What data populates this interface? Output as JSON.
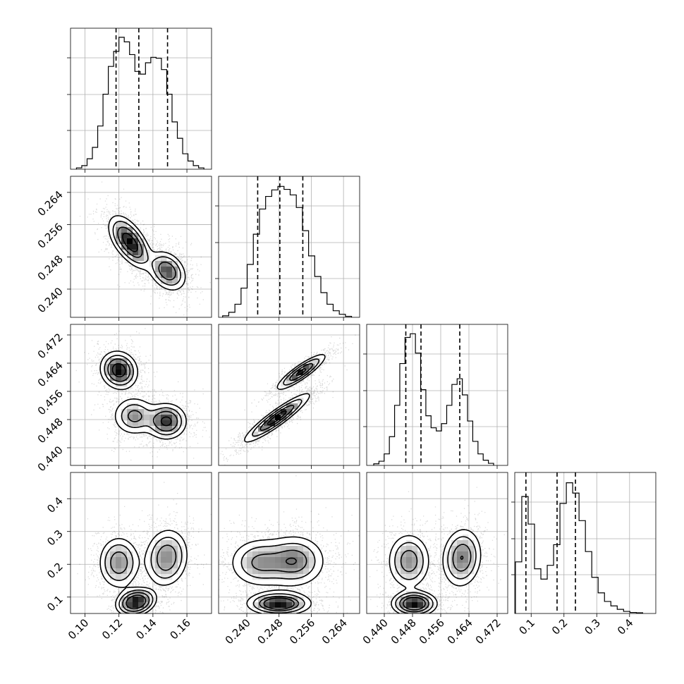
{
  "chart_data": {
    "type": "corner",
    "grid": true,
    "params": [
      {
        "lim": [
          0.0915,
          0.1745
        ],
        "ticks": [
          0.1,
          0.12,
          0.14,
          0.16
        ],
        "tick_labels": [
          "0.10",
          "0.12",
          "0.14",
          "0.16"
        ],
        "quantiles": [
          0.1183,
          0.1317,
          0.1486
        ],
        "hist": {
          "range": [
            0.095,
            0.17
          ],
          "values": [
            0.3,
            0.8,
            2.3,
            4.8,
            9.5,
            16.5,
            22.6,
            25.9,
            29.0,
            28.0,
            25.2,
            21.5,
            20.9,
            23.4,
            24.6,
            24.4,
            21.9,
            16.5,
            10.4,
            6.8,
            3.4,
            1.8,
            0.8,
            0.3
          ],
          "ymax": 31
        },
        "modes": [
          {
            "c": 0.124,
            "w": 0.55,
            "s": 0.0065
          },
          {
            "c": 0.148,
            "w": 0.45,
            "s": 0.006
          }
        ]
      },
      {
        "lim": [
          0.233,
          0.268
        ],
        "ticks": [
          0.24,
          0.248,
          0.256,
          0.264
        ],
        "tick_labels": [
          "0.240",
          "0.248",
          "0.256",
          "0.264"
        ],
        "quantiles": [
          0.2427,
          0.2482,
          0.2539
        ],
        "hist": {
          "range": [
            0.234,
            0.266
          ],
          "values": [
            0.3,
            1.0,
            2.6,
            5.8,
            10.5,
            16.5,
            21.5,
            24.0,
            25.3,
            26.0,
            25.4,
            24.3,
            21.8,
            17.2,
            12.2,
            8.1,
            4.9,
            2.6,
            1.3,
            0.6,
            0.2
          ],
          "ymax": 28
        },
        "modes": [
          {
            "c": 0.248,
            "w": 1.0,
            "s": 0.005
          }
        ]
      },
      {
        "lim": [
          0.435,
          0.475
        ],
        "ticks": [
          0.44,
          0.448,
          0.456,
          0.464,
          0.472
        ],
        "tick_labels": [
          "0.440",
          "0.448",
          "0.456",
          "0.464",
          "0.472"
        ],
        "quantiles": [
          0.4461,
          0.4504,
          0.4614
        ],
        "hist": {
          "range": [
            0.437,
            0.471
          ],
          "values": [
            0.3,
            0.8,
            2.2,
            5.5,
            11.5,
            19.5,
            24.5,
            25.2,
            21.5,
            14.5,
            9.5,
            7.2,
            6.6,
            8.0,
            11.5,
            15.5,
            16.6,
            13.5,
            8.5,
            4.6,
            2.2,
            1.0,
            0.4
          ],
          "ymax": 27
        },
        "modes": [
          {
            "c": 0.448,
            "w": 0.62,
            "s": 0.003
          },
          {
            "c": 0.4625,
            "w": 0.38,
            "s": 0.0028
          }
        ]
      },
      {
        "lim": [
          0.05,
          0.48
        ],
        "ticks": [
          0.1,
          0.2,
          0.3,
          0.4
        ],
        "tick_labels": [
          "0.1",
          "0.2",
          "0.3",
          "0.4"
        ],
        "quantiles": [
          0.084,
          0.179,
          0.235
        ],
        "hist": {
          "range": [
            0.052,
            0.44
          ],
          "values": [
            15.0,
            34.0,
            26.0,
            13.0,
            10.0,
            14.0,
            20.0,
            32.0,
            38.0,
            35.0,
            27.0,
            18.0,
            10.5,
            6.0,
            3.5,
            2.2,
            1.2,
            0.6,
            0.3,
            0.2
          ],
          "ymax": 41
        },
        "modes": [
          {
            "c": 0.085,
            "w": 0.26,
            "s": 0.018
          },
          {
            "c": 0.2,
            "w": 0.74,
            "s": 0.034
          }
        ]
      }
    ],
    "pairs": [
      {
        "row": 1,
        "col": 0,
        "clusters": [
          {
            "mx": 0.1235,
            "my": 0.253,
            "sx": 0.0055,
            "sy": 0.003,
            "rho": -0.45,
            "w": 0.35
          },
          {
            "mx": 0.13,
            "my": 0.25,
            "sx": 0.005,
            "sy": 0.0028,
            "rho": -0.45,
            "w": 0.25
          },
          {
            "mx": 0.1485,
            "my": 0.2445,
            "sx": 0.0058,
            "sy": 0.0026,
            "rho": -0.3,
            "w": 0.4
          }
        ]
      },
      {
        "row": 2,
        "col": 0,
        "clusters": [
          {
            "mx": 0.12,
            "my": 0.462,
            "sx": 0.0055,
            "sy": 0.0027,
            "rho": -0.1,
            "w": 0.38
          },
          {
            "mx": 0.129,
            "my": 0.449,
            "sx": 0.0065,
            "sy": 0.0028,
            "rho": 0.0,
            "w": 0.27
          },
          {
            "mx": 0.148,
            "my": 0.4475,
            "sx": 0.006,
            "sy": 0.0026,
            "rho": 0.0,
            "w": 0.35
          }
        ]
      },
      {
        "row": 2,
        "col": 1,
        "clusters": [
          {
            "mx": 0.2475,
            "my": 0.4485,
            "sx": 0.004,
            "sy": 0.0034,
            "rho": 0.92,
            "w": 0.62
          },
          {
            "mx": 0.2535,
            "my": 0.4615,
            "sx": 0.003,
            "sy": 0.0025,
            "rho": 0.88,
            "w": 0.38
          }
        ]
      },
      {
        "row": 3,
        "col": 0,
        "clusters": [
          {
            "mx": 0.12,
            "my": 0.205,
            "sx": 0.006,
            "sy": 0.04,
            "rho": 0.0,
            "w": 0.32
          },
          {
            "mx": 0.148,
            "my": 0.22,
            "sx": 0.0065,
            "sy": 0.045,
            "rho": 0.1,
            "w": 0.4
          },
          {
            "mx": 0.13,
            "my": 0.085,
            "sx": 0.0055,
            "sy": 0.02,
            "rho": 0.2,
            "w": 0.28
          }
        ]
      },
      {
        "row": 3,
        "col": 1,
        "clusters": [
          {
            "mx": 0.243,
            "my": 0.205,
            "sx": 0.004,
            "sy": 0.04,
            "rho": 0.0,
            "w": 0.32
          },
          {
            "mx": 0.252,
            "my": 0.21,
            "sx": 0.004,
            "sy": 0.042,
            "rho": 0.0,
            "w": 0.4
          },
          {
            "mx": 0.248,
            "my": 0.08,
            "sx": 0.004,
            "sy": 0.018,
            "rho": 0.0,
            "w": 0.28
          }
        ]
      },
      {
        "row": 3,
        "col": 2,
        "clusters": [
          {
            "mx": 0.447,
            "my": 0.21,
            "sx": 0.003,
            "sy": 0.042,
            "rho": 0.0,
            "w": 0.34
          },
          {
            "mx": 0.462,
            "my": 0.22,
            "sx": 0.0028,
            "sy": 0.045,
            "rho": 0.1,
            "w": 0.38
          },
          {
            "mx": 0.4485,
            "my": 0.08,
            "sx": 0.003,
            "sy": 0.018,
            "rho": 0.0,
            "w": 0.28
          }
        ]
      }
    ]
  }
}
